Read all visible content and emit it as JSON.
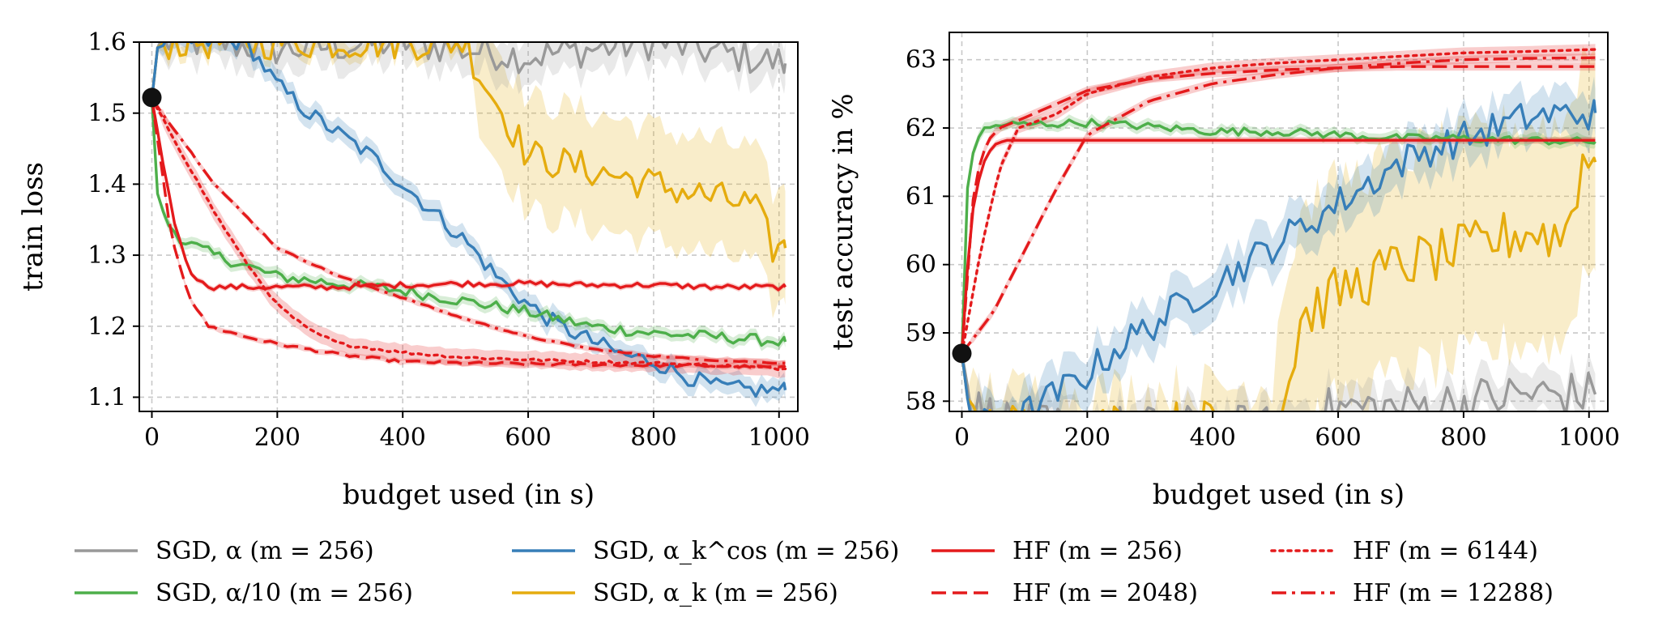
{
  "colors": {
    "grey": "#999999",
    "green": "#4daf4a",
    "blue": "#377eb8",
    "yellow": "#e5ac0e",
    "red": "#e41a1c",
    "grid": "#c8c8c8"
  },
  "chart_data": [
    {
      "type": "line",
      "xlabel": "budget used (in s)",
      "ylabel": "train loss",
      "xlim": [
        -20,
        1030
      ],
      "ylim": [
        1.08,
        1.6
      ],
      "xticks": [
        0,
        200,
        400,
        600,
        800,
        1000
      ],
      "yticks": [
        1.1,
        1.2,
        1.3,
        1.4,
        1.5,
        1.6
      ],
      "ytick_labels": [
        "1.1",
        "1.2",
        "1.3",
        "1.4",
        "1.5",
        "1.6"
      ],
      "grid": true,
      "start_point": {
        "x": 0,
        "y": 1.522
      },
      "series": [
        {
          "name": "SGD, α (m = 256)",
          "color": "grey",
          "style": "solid",
          "noise": 0.025,
          "x": [
            0,
            10,
            30,
            60,
            100,
            200,
            400,
            600,
            800,
            1010
          ],
          "y": [
            1.52,
            1.6,
            1.6,
            1.6,
            1.6,
            1.59,
            1.6,
            1.58,
            1.6,
            1.57
          ],
          "band": 0.03
        },
        {
          "name": "SGD, α/10 (m = 256)",
          "color": "green",
          "style": "solid",
          "noise": 0.008,
          "x": [
            0,
            5,
            20,
            50,
            100,
            150,
            200,
            300,
            400,
            500,
            600,
            700,
            800,
            900,
            1010
          ],
          "y": [
            1.52,
            1.4,
            1.35,
            1.32,
            1.3,
            1.285,
            1.27,
            1.26,
            1.25,
            1.235,
            1.22,
            1.2,
            1.19,
            1.185,
            1.178
          ],
          "band": 0.008
        },
        {
          "name": "SGD, α_k^cos (m = 256)",
          "color": "blue",
          "style": "solid",
          "noise": 0.012,
          "x": [
            0,
            10,
            50,
            100,
            150,
            200,
            250,
            300,
            350,
            400,
            450,
            500,
            550,
            600,
            650,
            700,
            750,
            800,
            850,
            900,
            950,
            1010
          ],
          "y": [
            1.52,
            1.6,
            1.6,
            1.6,
            1.6,
            1.54,
            1.5,
            1.47,
            1.44,
            1.4,
            1.36,
            1.32,
            1.27,
            1.23,
            1.2,
            1.18,
            1.16,
            1.15,
            1.13,
            1.115,
            1.11,
            1.11
          ],
          "band": 0.015
        },
        {
          "name": "SGD, α_k (m = 256)",
          "color": "yellow",
          "style": "solid",
          "noise": 0.025,
          "x": [
            0,
            10,
            100,
            300,
            500,
            520,
            560,
            600,
            700,
            800,
            900,
            960,
            990,
            1010
          ],
          "y": [
            1.52,
            1.6,
            1.6,
            1.6,
            1.6,
            1.56,
            1.5,
            1.44,
            1.42,
            1.4,
            1.38,
            1.37,
            1.31,
            1.31
          ],
          "band": 0.08
        },
        {
          "name": "HF (m = 256)",
          "color": "red",
          "style": "solid",
          "noise": 0.004,
          "x": [
            0,
            20,
            40,
            60,
            80,
            100,
            200,
            300,
            400,
            500,
            600,
            700,
            800,
            900,
            1010
          ],
          "y": [
            1.52,
            1.42,
            1.33,
            1.28,
            1.26,
            1.255,
            1.255,
            1.255,
            1.258,
            1.26,
            1.26,
            1.258,
            1.258,
            1.255,
            1.255
          ],
          "band": 0.004
        },
        {
          "name": "HF (m = 2048)",
          "color": "red",
          "style": "dashed",
          "noise": 0.002,
          "x": [
            0,
            30,
            60,
            90,
            150,
            200,
            300,
            400,
            500,
            600,
            700,
            800,
            900,
            1010
          ],
          "y": [
            1.52,
            1.33,
            1.24,
            1.2,
            1.185,
            1.175,
            1.16,
            1.15,
            1.148,
            1.147,
            1.146,
            1.145,
            1.144,
            1.142
          ],
          "band": 0.004
        },
        {
          "name": "HF (m = 6144)",
          "color": "red",
          "style": "dotted",
          "noise": 0.002,
          "x": [
            0,
            50,
            100,
            150,
            200,
            250,
            300,
            400,
            500,
            600,
            700,
            800,
            900,
            1010
          ],
          "y": [
            1.52,
            1.44,
            1.36,
            1.29,
            1.23,
            1.195,
            1.175,
            1.163,
            1.156,
            1.153,
            1.15,
            1.148,
            1.145,
            1.14
          ],
          "band": 0.012
        },
        {
          "name": "HF (m = 12288)",
          "color": "red",
          "style": "dashdot",
          "noise": 0.001,
          "x": [
            0,
            100,
            200,
            300,
            400,
            500,
            600,
            700,
            800,
            900,
            1010
          ],
          "y": [
            1.52,
            1.4,
            1.31,
            1.27,
            1.24,
            1.21,
            1.185,
            1.168,
            1.158,
            1.152,
            1.148
          ],
          "band": 0.004
        }
      ]
    },
    {
      "type": "line",
      "xlabel": "budget used (in s)",
      "ylabel": "test accuracy in %",
      "xlim": [
        -20,
        1030
      ],
      "ylim": [
        57.85,
        63.4
      ],
      "xticks": [
        0,
        200,
        400,
        600,
        800,
        1000
      ],
      "yticks": [
        58,
        59,
        60,
        61,
        62,
        63
      ],
      "ytick_labels": [
        "58",
        "59",
        "60",
        "61",
        "62",
        "63"
      ],
      "grid": true,
      "start_point": {
        "x": 0,
        "y": 58.7
      },
      "series": [
        {
          "name": "SGD, α (m = 256)",
          "color": "grey",
          "style": "solid",
          "noise": 0.35,
          "x": [
            0,
            15,
            100,
            300,
            500,
            600,
            700,
            800,
            900,
            1010
          ],
          "y": [
            58.7,
            57.9,
            57.6,
            57.6,
            57.6,
            57.9,
            57.9,
            58.0,
            58.1,
            58.1
          ],
          "band": 0.3
        },
        {
          "name": "SGD, α/10 (m = 256)",
          "color": "green",
          "style": "solid",
          "noise": 0.06,
          "x": [
            0,
            5,
            15,
            30,
            60,
            100,
            200,
            300,
            400,
            500,
            600,
            700,
            800,
            900,
            1010
          ],
          "y": [
            58.7,
            60.8,
            61.6,
            61.95,
            62.05,
            62.05,
            62.08,
            62.02,
            61.95,
            61.95,
            61.9,
            61.85,
            61.85,
            61.82,
            61.8
          ],
          "band": 0.08
        },
        {
          "name": "SGD, α_k^cos (m = 256)",
          "color": "blue",
          "style": "solid",
          "noise": 0.25,
          "x": [
            0,
            15,
            100,
            150,
            200,
            250,
            300,
            350,
            400,
            450,
            500,
            550,
            600,
            650,
            700,
            750,
            800,
            850,
            900,
            950,
            1010
          ],
          "y": [
            58.7,
            57.6,
            57.8,
            58.1,
            58.4,
            58.8,
            59.1,
            59.4,
            59.7,
            60.0,
            60.3,
            60.6,
            60.9,
            61.2,
            61.5,
            61.7,
            61.85,
            62.0,
            62.15,
            62.2,
            62.22
          ],
          "band": 0.35
        },
        {
          "name": "SGD, α_k (m = 256)",
          "color": "yellow",
          "style": "solid",
          "noise": 0.4,
          "x": [
            0,
            15,
            100,
            300,
            500,
            520,
            540,
            600,
            700,
            800,
            900,
            960,
            990,
            1010
          ],
          "y": [
            58.7,
            57.6,
            57.6,
            57.6,
            57.7,
            58.2,
            59.2,
            59.6,
            60.0,
            60.2,
            60.5,
            60.4,
            61.5,
            61.5
          ],
          "band": 1.6
        },
        {
          "name": "HF (m = 256)",
          "color": "red",
          "style": "solid",
          "noise": 0.0,
          "x": [
            0,
            10,
            20,
            35,
            50,
            70,
            100,
            200,
            400,
            600,
            800,
            1010
          ],
          "y": [
            58.7,
            60.1,
            61.0,
            61.5,
            61.75,
            61.82,
            61.82,
            61.82,
            61.82,
            61.82,
            61.82,
            61.82
          ],
          "band": 0.05
        },
        {
          "name": "HF (m = 2048)",
          "color": "red",
          "style": "dashed",
          "noise": 0.0,
          "x": [
            0,
            20,
            40,
            60,
            100,
            150,
            200,
            300,
            400,
            500,
            600,
            700,
            800,
            900,
            1010
          ],
          "y": [
            58.7,
            61.2,
            61.8,
            62.0,
            62.15,
            62.35,
            62.55,
            62.72,
            62.8,
            62.85,
            62.88,
            62.9,
            62.9,
            62.9,
            62.9
          ],
          "band": 0.06
        },
        {
          "name": "HF (m = 6144)",
          "color": "red",
          "style": "dotted",
          "noise": 0.0,
          "x": [
            0,
            30,
            60,
            90,
            150,
            200,
            300,
            400,
            500,
            600,
            700,
            800,
            900,
            1010
          ],
          "y": [
            58.7,
            60.2,
            61.4,
            62.0,
            62.2,
            62.5,
            62.75,
            62.88,
            62.95,
            63.0,
            63.05,
            63.1,
            63.12,
            63.15
          ],
          "band": 0.08
        },
        {
          "name": "HF (m = 12288)",
          "color": "red",
          "style": "dashdot",
          "noise": 0.0,
          "x": [
            0,
            50,
            100,
            150,
            200,
            300,
            400,
            500,
            600,
            700,
            800,
            900,
            1010
          ],
          "y": [
            58.7,
            59.3,
            60.2,
            61.1,
            61.9,
            62.4,
            62.65,
            62.78,
            62.88,
            62.95,
            63.0,
            63.02,
            63.03
          ],
          "band": 0.06
        }
      ]
    }
  ],
  "legend": {
    "placement": "bottom",
    "entries": [
      {
        "label": "SGD, α (m = 256)",
        "color": "grey",
        "style": "solid"
      },
      {
        "label": "SGD, α/10 (m = 256)",
        "color": "green",
        "style": "solid"
      },
      {
        "label": "SGD, α_k^cos (m = 256)",
        "color": "blue",
        "style": "solid"
      },
      {
        "label": "SGD, α_k (m = 256)",
        "color": "yellow",
        "style": "solid"
      },
      {
        "label": "HF (m = 256)",
        "color": "red",
        "style": "solid"
      },
      {
        "label": "HF (m = 2048)",
        "color": "red",
        "style": "dashed"
      },
      {
        "label": "HF (m = 6144)",
        "color": "red",
        "style": "dotted"
      },
      {
        "label": "HF (m = 12288)",
        "color": "red",
        "style": "dashdot"
      }
    ]
  }
}
